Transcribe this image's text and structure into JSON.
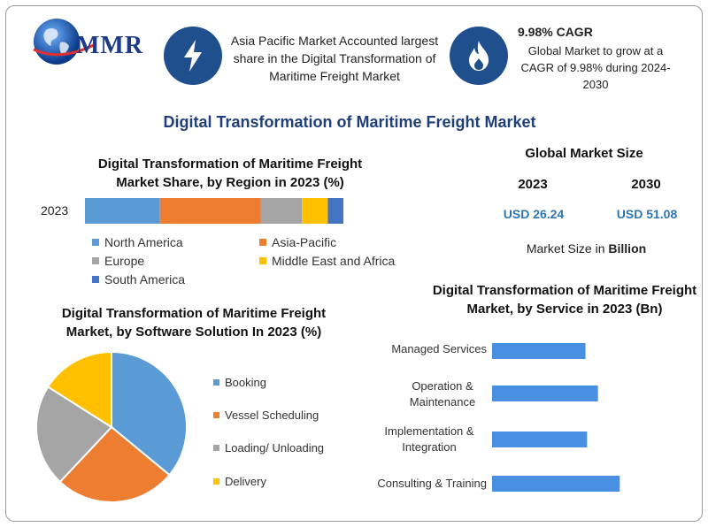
{
  "header": {
    "logo_text": "MMR",
    "highlight_1": {
      "icon": "lightning-bolt-icon",
      "text": "Asia Pacific Market Accounted largest share in the Digital Transformation of Maritime Freight Market"
    },
    "highlight_2": {
      "icon": "flame-icon",
      "title": "9.98% CAGR",
      "text": "Global Market to grow at a CAGR of 9.98% during 2024-2030"
    }
  },
  "main_title": "Digital Transformation of Maritime Freight Market",
  "market_size": {
    "title": "Global Market Size",
    "year_1": "2023",
    "year_2": "2030",
    "value_1": "USD 26.24",
    "value_2": "USD 51.08",
    "note_prefix": "Market Size in ",
    "note_unit": "Billion"
  },
  "colors": {
    "blue": "#5b9bd5",
    "orange": "#ed7d31",
    "gray": "#a5a5a5",
    "yellow": "#ffc000",
    "dark_blue": "#4472c4",
    "bar_blue": "#4a90e2",
    "value_blue": "#2e75b6",
    "title_blue": "#1f3f7a"
  },
  "chart_data": [
    {
      "type": "bar",
      "orientation": "horizontal-stacked",
      "title": "Digital Transformation of Maritime Freight Market Share, by Region in 2023 (%)",
      "categories": [
        "2023"
      ],
      "series": [
        {
          "name": "North America",
          "values": [
            29
          ]
        },
        {
          "name": "Asia-Pacific",
          "values": [
            39
          ]
        },
        {
          "name": "Europe",
          "values": [
            16
          ]
        },
        {
          "name": "Middle East and Africa",
          "values": [
            10
          ]
        },
        {
          "name": "South America",
          "values": [
            6
          ]
        }
      ],
      "legend": "bottom"
    },
    {
      "type": "pie",
      "title": "Digital Transformation of Maritime Freight Market, by Software Solution In 2023 (%)",
      "labels": [
        "Booking",
        "Vessel Scheduling",
        "Loading/ Unloading",
        "Delivery"
      ],
      "values": [
        36,
        26,
        22,
        16
      ],
      "legend": "right"
    },
    {
      "type": "bar",
      "orientation": "horizontal",
      "title": "Digital Transformation of Maritime Freight Market, by Service in 2023 (Bn)",
      "categories": [
        "Managed Services",
        "Operation & Maintenance",
        "Implementation & Integration",
        "Consulting & Training"
      ],
      "values": [
        6.0,
        6.8,
        6.1,
        8.2
      ],
      "xlim": [
        0,
        10
      ]
    }
  ]
}
